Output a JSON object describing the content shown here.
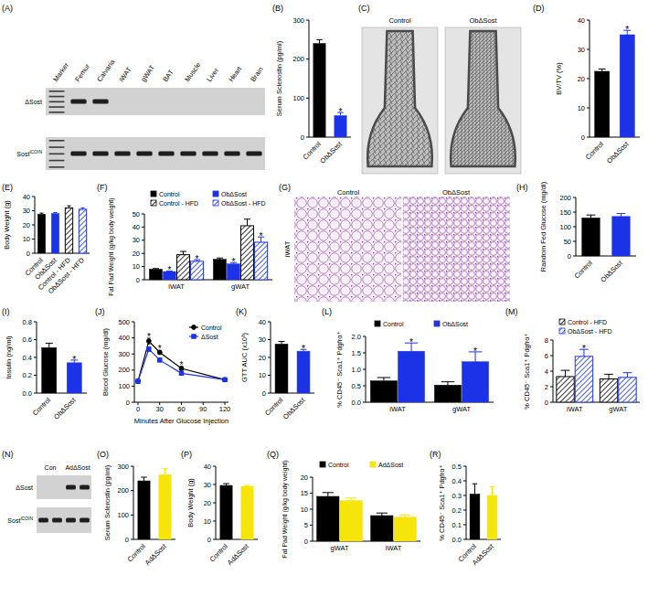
{
  "chart_data": [
    {
      "type": "bar",
      "title": "(B)",
      "y_label": "Serum Sclerostin (pg/ml)",
      "categories": [
        "Control",
        "ObΔSost"
      ],
      "series": [
        {
          "colors": [
            "#000000",
            "#1c32e6"
          ],
          "values": [
            240,
            55
          ],
          "errors": [
            10,
            8
          ]
        }
      ],
      "ylim": [
        0,
        300
      ],
      "yticks": [
        0,
        100,
        200,
        300
      ],
      "annotations": [
        {
          "text": "*",
          "series": 0,
          "index": 1
        }
      ]
    },
    {
      "type": "bar",
      "title": "(D)",
      "y_label": "BV/TV (%)",
      "categories": [
        "Control",
        "ObΔSost"
      ],
      "series": [
        {
          "colors": [
            "#000000",
            "#1c32e6"
          ],
          "values": [
            22.5,
            35
          ],
          "errors": [
            0.8,
            1.5
          ]
        }
      ],
      "ylim": [
        0,
        40
      ],
      "yticks": [
        0,
        10,
        20,
        30,
        40
      ],
      "annotations": [
        {
          "text": "*",
          "series": 0,
          "index": 1
        }
      ]
    },
    {
      "type": "bar",
      "title": "(E)",
      "y_label": "Body Weight (g)",
      "categories": [
        "Control",
        "ObΔSost",
        "Control - HFD",
        "ObΔSost - HFD"
      ],
      "series": [
        {
          "type": "bar",
          "colors": [
            "#000000",
            "#1c32e6",
            "#000000",
            "#1c32e6"
          ],
          "values": [
            27.5,
            28,
            null,
            null
          ],
          "errors": [
            0.8,
            0.7,
            null,
            null
          ]
        },
        {
          "type": "hatched-bar",
          "colors": [
            "#000000",
            "#1c32e6",
            "#000000",
            "#1c32e6"
          ],
          "values": [
            null,
            null,
            32,
            31
          ],
          "errors": [
            null,
            null,
            1.5,
            1
          ]
        }
      ],
      "ylim": [
        0,
        40
      ],
      "yticks": [
        0,
        10,
        20,
        30,
        40
      ]
    },
    {
      "type": "bar",
      "title": "(F)",
      "y_label": "Fat Pad Weight (g/kg body weight)",
      "categories": [
        "iWAT",
        "gWAT"
      ],
      "series": [
        {
          "name": "Control",
          "type": "bar",
          "color": "#000000",
          "values": [
            8,
            15.5
          ],
          "errors": [
            0.5,
            1
          ]
        },
        {
          "name": "ObΔSost",
          "type": "bar",
          "color": "#1c32e6",
          "values": [
            6.2,
            12
          ],
          "errors": [
            0.4,
            1
          ]
        },
        {
          "name": "Control - HFD",
          "type": "hatched-bar",
          "color": "#000000",
          "values": [
            19,
            41
          ],
          "errors": [
            2.5,
            5
          ]
        },
        {
          "name": "ObΔSost - HFD",
          "type": "hatched-bar",
          "color": "#1c32e6",
          "values": [
            14,
            28.5
          ],
          "errors": [
            1.2,
            4
          ]
        }
      ],
      "ylim": [
        0,
        50
      ],
      "yticks": [
        0,
        10,
        20,
        30,
        40,
        50
      ],
      "legend": "top",
      "annotations": [
        {
          "text": "*",
          "series": 1,
          "index": 0
        },
        {
          "text": "*",
          "series": 3,
          "index": 0
        },
        {
          "text": "*",
          "series": 1,
          "index": 1
        },
        {
          "text": "*",
          "series": 3,
          "index": 1
        }
      ]
    },
    {
      "type": "bar",
      "title": "(H)",
      "y_label": "Random Fed Glucose (mg/dl)",
      "categories": [
        "Control",
        "ObΔSost"
      ],
      "series": [
        {
          "colors": [
            "#000000",
            "#1c32e6"
          ],
          "values": [
            130,
            135
          ],
          "errors": [
            10,
            10
          ]
        }
      ],
      "ylim": [
        0,
        200
      ],
      "yticks": [
        0,
        50,
        100,
        150,
        200
      ]
    },
    {
      "type": "bar",
      "title": "(I)",
      "y_label": "Insulin (ng/ml)",
      "categories": [
        "Control",
        "ObΔSost"
      ],
      "series": [
        {
          "colors": [
            "#000000",
            "#1c32e6"
          ],
          "values": [
            0.51,
            0.34
          ],
          "errors": [
            0.05,
            0.03
          ]
        }
      ],
      "ylim": [
        0,
        0.8
      ],
      "yticks": [
        {
          "value": 0,
          "label": "0.0"
        },
        {
          "value": 0.2,
          "label": "0.2"
        },
        {
          "value": 0.4,
          "label": "0.4"
        },
        {
          "value": 0.6,
          "label": "0.6"
        },
        {
          "value": 0.8,
          "label": "0.8"
        }
      ],
      "annotations": [
        {
          "text": "*",
          "series": 0,
          "index": 1
        }
      ]
    },
    {
      "type": "line",
      "title": "(J)",
      "y_label": "Blood Glucose (mg/dl)",
      "x_label": "Minutes After Glucose Injection",
      "x": [
        0,
        15,
        30,
        60,
        120
      ],
      "series": [
        {
          "name": "Control",
          "color": "#000000",
          "marker": "circle",
          "line_style": "solid",
          "values": [
            130,
            380,
            310,
            210,
            140
          ],
          "errors": [
            10,
            18,
            12,
            12,
            8
          ]
        },
        {
          "name": "ΔSost",
          "color": "#1c32e6",
          "marker": "square",
          "line_style": "solid",
          "values": [
            130,
            330,
            262,
            180,
            140
          ],
          "errors": [
            8,
            15,
            10,
            8,
            8
          ]
        }
      ],
      "xlim": [
        -5,
        125
      ],
      "xticks": [
        0,
        30,
        60,
        90,
        120
      ],
      "ylim": [
        0,
        500
      ],
      "yticks": [
        0,
        100,
        200,
        300,
        400,
        500
      ],
      "legend": "upper right",
      "annotations": [
        {
          "text": "*",
          "series": 0,
          "index": 1
        },
        {
          "text": "*",
          "series": 0,
          "index": 2
        },
        {
          "text": "*",
          "series": 0,
          "index": 3
        }
      ]
    },
    {
      "type": "bar",
      "title": "(K)",
      "y_label": "GTT AUC (x10³)",
      "categories": [
        "Control",
        "ObΔSost"
      ],
      "series": [
        {
          "colors": [
            "#000000",
            "#1c32e6"
          ],
          "values": [
            27.5,
            23.5
          ],
          "errors": [
            1.5,
            1
          ]
        }
      ],
      "ylim": [
        0,
        40
      ],
      "yticks": [
        0,
        10,
        20,
        30,
        40
      ],
      "annotations": [
        {
          "text": "*",
          "series": 0,
          "index": 1
        }
      ]
    },
    {
      "type": "bar",
      "title": "(L)",
      "y_label": "% CD45⁻ Sca1⁺ Pdgfrα⁺",
      "categories": [
        "iWAT",
        "gWAT"
      ],
      "series": [
        {
          "name": "Control",
          "type": "bar",
          "color": "#000000",
          "values": [
            0.65,
            0.52
          ],
          "errors": [
            0.1,
            0.1
          ]
        },
        {
          "name": "ObΔSost",
          "type": "bar",
          "color": "#1c32e6",
          "values": [
            1.55,
            1.23
          ],
          "errors": [
            0.25,
            0.3
          ]
        }
      ],
      "ylim": [
        0,
        2
      ],
      "yticks": [
        {
          "value": 0,
          "label": "0.0"
        },
        {
          "value": 0.5,
          "label": "0.5"
        },
        {
          "value": 1,
          "label": "1.0"
        },
        {
          "value": 1.5,
          "label": "1.5"
        },
        {
          "value": 2,
          "label": "2.0"
        }
      ],
      "legend": "top",
      "annotations": [
        {
          "text": "*",
          "series": 1,
          "index": 0
        },
        {
          "text": "*",
          "series": 1,
          "index": 1
        }
      ]
    },
    {
      "type": "bar",
      "title": "(M)",
      "y_label": "% CD45⁻ Sca1⁺ Pdgfrα⁺",
      "categories": [
        "iWAT",
        "gWAT"
      ],
      "series": [
        {
          "name": "Control - HFD",
          "type": "hatched-bar",
          "color": "#000000",
          "values": [
            3.3,
            3.0
          ],
          "errors": [
            0.8,
            0.6
          ]
        },
        {
          "name": "ObΔSost - HFD",
          "type": "hatched-bar",
          "color": "#1c32e6",
          "values": [
            5.9,
            3.2
          ],
          "errors": [
            0.9,
            0.6
          ]
        }
      ],
      "ylim": [
        0,
        8
      ],
      "yticks": [
        0,
        2,
        4,
        6,
        8
      ],
      "legend": "top",
      "annotations": [
        {
          "text": "*",
          "series": 1,
          "index": 0
        }
      ]
    },
    {
      "type": "bar",
      "title": "(O)",
      "y_label": "Serum Sclerostin (pg/ml)",
      "categories": [
        "Control",
        "AdΔSost"
      ],
      "series": [
        {
          "colors": [
            "#000000",
            "#f5e50a"
          ],
          "values": [
            240,
            265
          ],
          "errors": [
            15,
            25
          ]
        }
      ],
      "ylim": [
        0,
        300
      ],
      "yticks": [
        0,
        100,
        200,
        300
      ]
    },
    {
      "type": "bar",
      "title": "(P)",
      "y_label": "Body Weight (g)",
      "categories": [
        "Control",
        "AdΔSost"
      ],
      "series": [
        {
          "colors": [
            "#000000",
            "#f5e50a"
          ],
          "values": [
            29.5,
            29
          ],
          "errors": [
            1,
            0.5
          ]
        }
      ],
      "ylim": [
        0,
        40
      ],
      "yticks": [
        0,
        10,
        20,
        30,
        40
      ]
    },
    {
      "type": "bar",
      "title": "(Q)",
      "y_label": "Fat Pad Weight (g/kg body weight)",
      "categories": [
        "gWAT",
        "iWAT"
      ],
      "series": [
        {
          "name": "Control",
          "type": "bar",
          "color": "#000000",
          "values": [
            14,
            8
          ],
          "errors": [
            1.2,
            0.8
          ]
        },
        {
          "name": "AdΔSost",
          "type": "bar",
          "color": "#f5e50a",
          "values": [
            12.7,
            7.5
          ],
          "errors": [
            0.8,
            0.7
          ]
        }
      ],
      "ylim": [
        0,
        20
      ],
      "yticks": [
        0,
        5,
        10,
        15,
        20
      ],
      "legend": "top"
    },
    {
      "type": "bar",
      "title": "(R)",
      "y_label": "% CD45⁻ Sca1⁺ Pdgfrα⁺",
      "categories": [
        "Control",
        "AdΔSost"
      ],
      "series": [
        {
          "colors": [
            "#000000",
            "#f5e50a"
          ],
          "values": [
            0.31,
            0.3
          ],
          "errors": [
            0.07,
            0.06
          ]
        }
      ],
      "ylim": [
        0,
        0.5
      ],
      "yticks": [
        {
          "value": 0,
          "label": "0.0"
        },
        {
          "value": 0.1,
          "label": "0.1"
        },
        {
          "value": 0.2,
          "label": "0.2"
        },
        {
          "value": 0.3,
          "label": "0.3"
        },
        {
          "value": 0.4,
          "label": "0.4"
        },
        {
          "value": 0.5,
          "label": "0.5"
        }
      ]
    }
  ],
  "image_panels": [
    {
      "type": "gel",
      "title": "(A)",
      "lanes": [
        "Marker",
        "Femur",
        "Calvaria",
        "iWAT",
        "gWAT",
        "BAT",
        "Muscle",
        "Liver",
        "Heart",
        "Brain"
      ],
      "marker_lane": 0,
      "rows": [
        {
          "label": "ΔSost",
          "bands": [
            true,
            true,
            true,
            false,
            false,
            false,
            false,
            false,
            false,
            false
          ]
        },
        {
          "label": "Sost",
          "label_sup": "iCOIN",
          "bands": [
            true,
            true,
            true,
            true,
            true,
            true,
            true,
            true,
            true,
            true
          ]
        }
      ]
    },
    {
      "type": "micro-ct",
      "title": "(C)",
      "labels": [
        "Control",
        "ObΔSost"
      ]
    },
    {
      "type": "histology",
      "title": "(G)",
      "side_label": "iWAT",
      "labels": [
        "Control",
        "ObΔSost"
      ]
    },
    {
      "type": "gel",
      "title": "(N)",
      "lane_groups": [
        {
          "label": "Con",
          "lanes": 2
        },
        {
          "label": "AdΔSost",
          "lanes": 2
        }
      ],
      "rows": [
        {
          "label": "ΔSost",
          "bands": [
            false,
            false,
            true,
            true
          ]
        },
        {
          "label": "Sost",
          "label_sup": "iCOIN",
          "bands": [
            true,
            true,
            true,
            true
          ]
        }
      ]
    }
  ]
}
